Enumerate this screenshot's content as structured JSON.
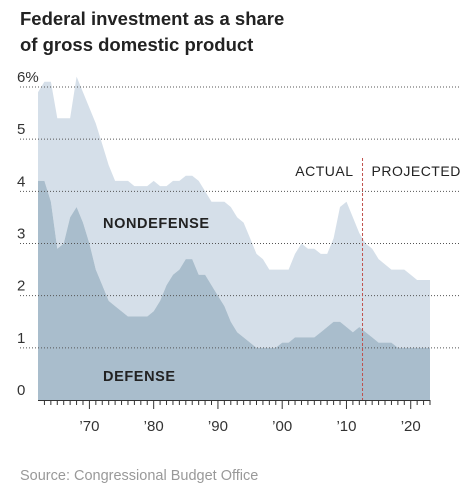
{
  "title_lines": [
    "Federal investment as a share",
    "of gross domestic product"
  ],
  "source": "Source: Congressional Budget Office",
  "chart_data": {
    "type": "area",
    "stacked": true,
    "title": "Federal investment as a share of gross domestic product",
    "xlim": [
      1962,
      2023
    ],
    "ylim": [
      0,
      6
    ],
    "y_ticks": [
      0,
      1,
      2,
      3,
      4,
      5,
      6
    ],
    "y_tick_labels": [
      "0",
      "1",
      "2",
      "3",
      "4",
      "5",
      "6%"
    ],
    "x_ticks": [
      1970,
      1980,
      1990,
      2000,
      2010,
      2020
    ],
    "x_tick_labels": [
      "’70",
      "’80",
      "’90",
      "’00",
      "’10",
      "’20"
    ],
    "grid": "horizontal",
    "colors": {
      "defense": "#a9bdcc",
      "nondefense": "#d5dfe9",
      "divider": "#c0504d",
      "grid": "#555555"
    },
    "divider_x": 2012.5,
    "annotations": {
      "actual": "ACTUAL",
      "projected": "PROJECTED"
    },
    "x": [
      1962,
      1963,
      1964,
      1965,
      1966,
      1967,
      1968,
      1969,
      1970,
      1971,
      1972,
      1973,
      1974,
      1975,
      1976,
      1977,
      1978,
      1979,
      1980,
      1981,
      1982,
      1983,
      1984,
      1985,
      1986,
      1987,
      1988,
      1989,
      1990,
      1991,
      1992,
      1993,
      1994,
      1995,
      1996,
      1997,
      1998,
      1999,
      2000,
      2001,
      2002,
      2003,
      2004,
      2005,
      2006,
      2007,
      2008,
      2009,
      2010,
      2011,
      2012,
      2013,
      2014,
      2015,
      2016,
      2017,
      2018,
      2019,
      2020,
      2021,
      2022,
      2023
    ],
    "series": [
      {
        "name": "DEFENSE",
        "values": [
          4.2,
          4.2,
          3.8,
          2.9,
          3.0,
          3.5,
          3.7,
          3.4,
          3.0,
          2.5,
          2.2,
          1.9,
          1.8,
          1.7,
          1.6,
          1.6,
          1.6,
          1.6,
          1.7,
          1.9,
          2.2,
          2.4,
          2.5,
          2.7,
          2.7,
          2.4,
          2.4,
          2.2,
          2.0,
          1.8,
          1.5,
          1.3,
          1.2,
          1.1,
          1.0,
          1.0,
          1.0,
          1.0,
          1.1,
          1.1,
          1.2,
          1.2,
          1.2,
          1.2,
          1.3,
          1.4,
          1.5,
          1.5,
          1.4,
          1.3,
          1.4,
          1.3,
          1.2,
          1.1,
          1.1,
          1.1,
          1.0,
          1.0,
          1.0,
          1.0,
          1.0,
          1.0
        ]
      },
      {
        "name": "NONDEFENSE",
        "values": [
          1.7,
          1.9,
          2.3,
          2.5,
          2.4,
          1.9,
          2.5,
          2.5,
          2.6,
          2.8,
          2.7,
          2.6,
          2.4,
          2.5,
          2.6,
          2.5,
          2.5,
          2.5,
          2.5,
          2.2,
          1.9,
          1.8,
          1.7,
          1.6,
          1.6,
          1.8,
          1.6,
          1.6,
          1.8,
          2.0,
          2.2,
          2.2,
          2.2,
          2.0,
          1.8,
          1.7,
          1.5,
          1.5,
          1.4,
          1.4,
          1.6,
          1.8,
          1.7,
          1.7,
          1.5,
          1.4,
          1.6,
          2.2,
          2.4,
          2.2,
          1.8,
          1.7,
          1.7,
          1.6,
          1.5,
          1.4,
          1.5,
          1.5,
          1.4,
          1.3,
          1.3,
          1.3
        ]
      }
    ]
  }
}
